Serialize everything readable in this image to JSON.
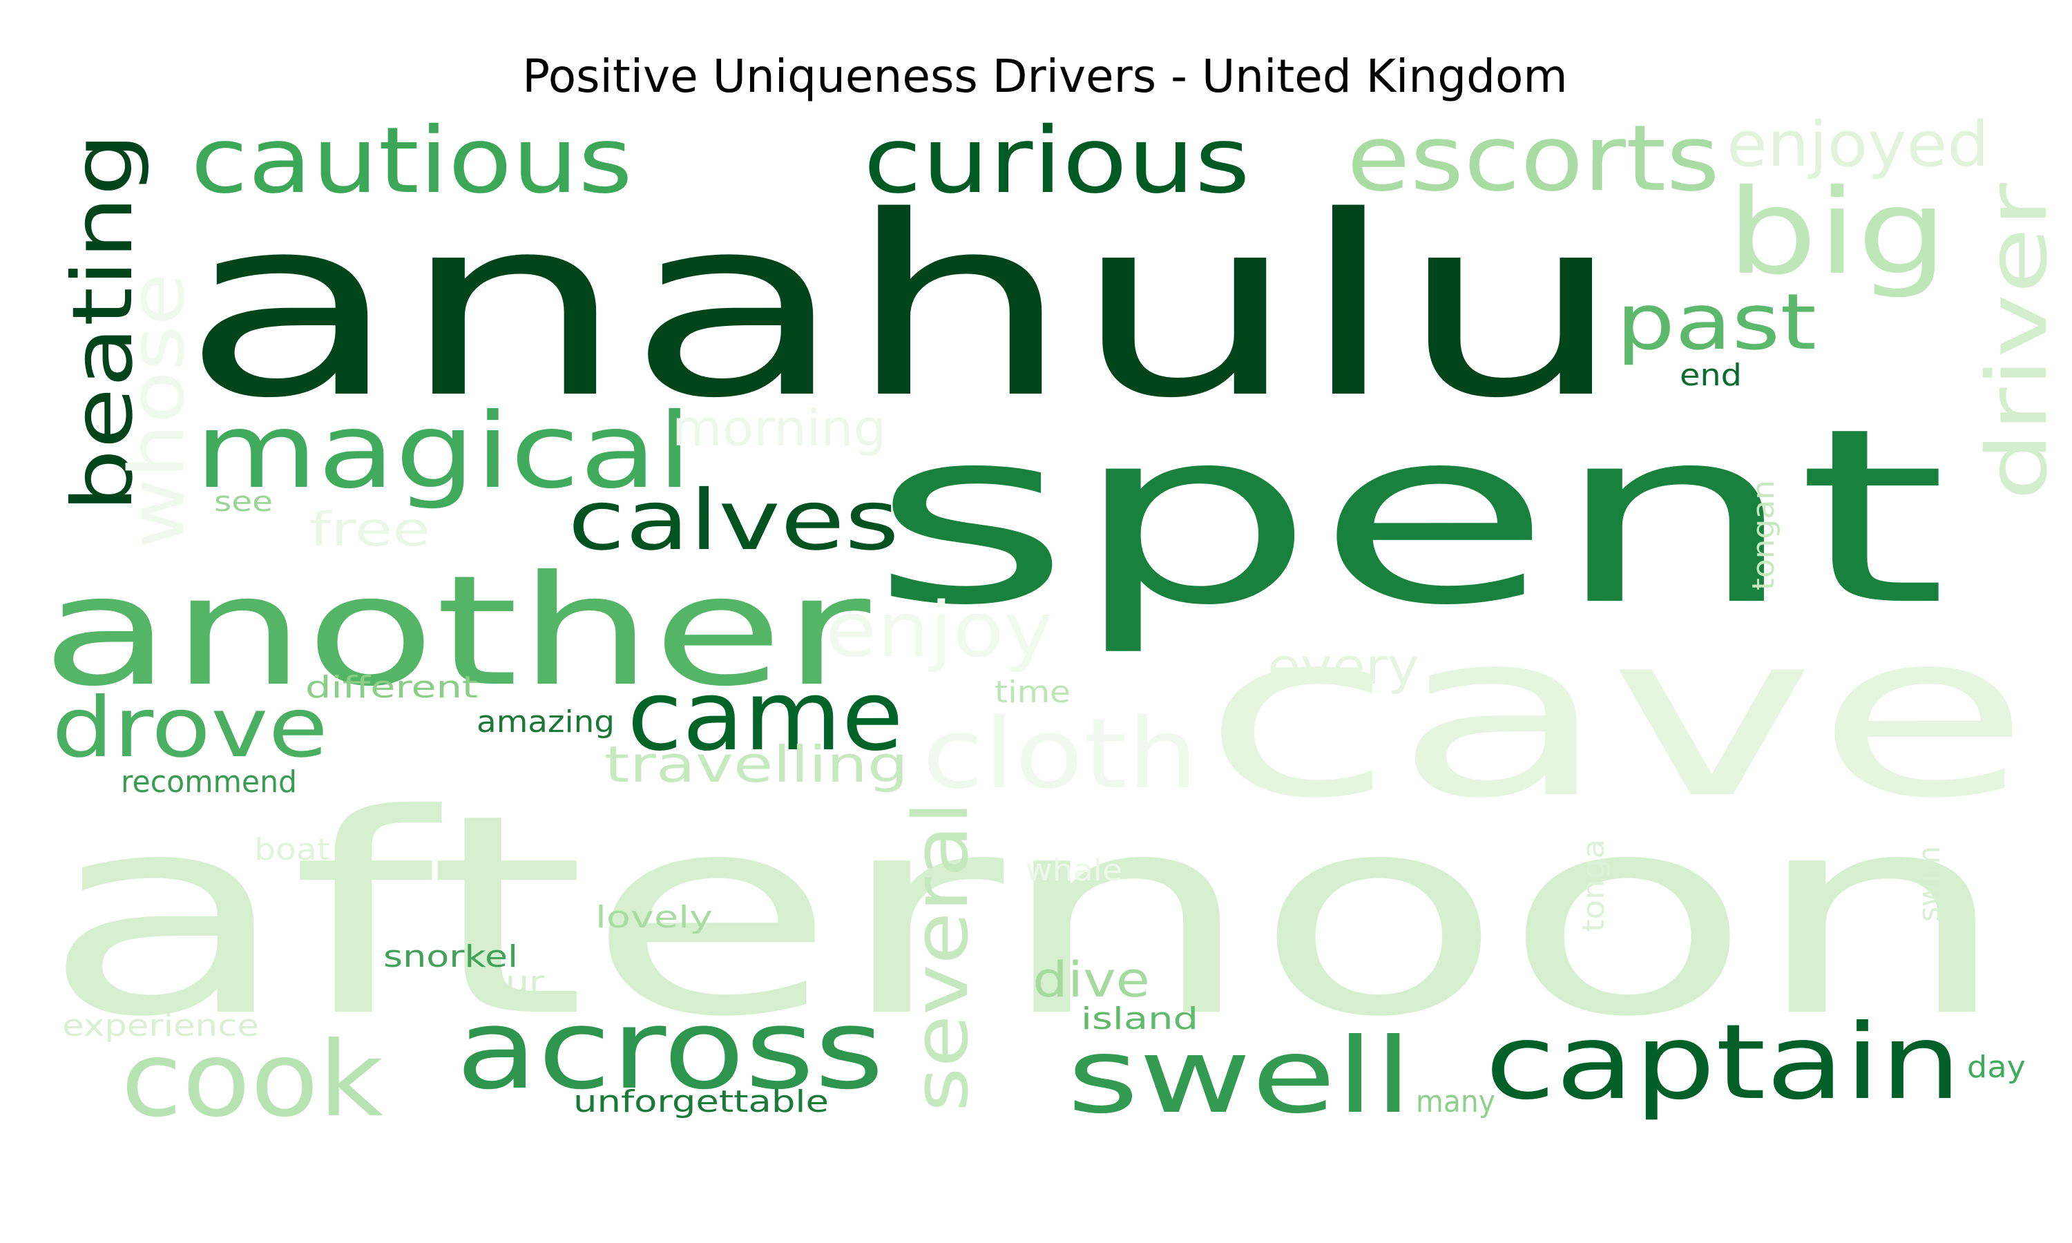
{
  "chart_data": {
    "type": "wordcloud",
    "title": "Positive Uniqueness Drivers - United Kingdom",
    "colormap": "Greens",
    "words": [
      {
        "text": "anahulu",
        "color": "#00441b"
      },
      {
        "text": "spent",
        "color": "#17813d"
      },
      {
        "text": "cave",
        "color": "#e5f5e0"
      },
      {
        "text": "afternoon",
        "color": "#d5efcf"
      },
      {
        "text": "another",
        "color": "#55b567"
      },
      {
        "text": "magical",
        "color": "#41ab5d"
      },
      {
        "text": "cautious",
        "color": "#3da758"
      },
      {
        "text": "curious",
        "color": "#005a24"
      },
      {
        "text": "escorts",
        "color": "#a8dca2"
      },
      {
        "text": "enjoyed",
        "color": "#e2f3dc"
      },
      {
        "text": "big",
        "color": "#bfe6b9"
      },
      {
        "text": "past",
        "color": "#5cb86b"
      },
      {
        "text": "driver",
        "color": "#d3eecd"
      },
      {
        "text": "beating",
        "color": "#00441b"
      },
      {
        "text": "whose",
        "color": "#f0f9ed"
      },
      {
        "text": "calves",
        "color": "#005221"
      },
      {
        "text": "morning",
        "color": "#eef8ea"
      },
      {
        "text": "came",
        "color": "#006428"
      },
      {
        "text": "drove",
        "color": "#4aaf61"
      },
      {
        "text": "enjoy",
        "color": "#f2faf0"
      },
      {
        "text": "cloth",
        "color": "#f0f9ed"
      },
      {
        "text": "several",
        "color": "#c5e8bf"
      },
      {
        "text": "across",
        "color": "#2d954d"
      },
      {
        "text": "swell",
        "color": "#329b51"
      },
      {
        "text": "captain",
        "color": "#006027"
      },
      {
        "text": "cook",
        "color": "#b7e2b1"
      },
      {
        "text": "dive",
        "color": "#a4da9e"
      },
      {
        "text": "travelling",
        "color": "#c7e9c0"
      },
      {
        "text": "every",
        "color": "#e5f5e0"
      },
      {
        "text": "free",
        "color": "#eaf7e6"
      },
      {
        "text": "see",
        "color": "#99d595"
      },
      {
        "text": "end",
        "color": "#0a6b31"
      },
      {
        "text": "tongan",
        "color": "#c7e9c0"
      },
      {
        "text": "different",
        "color": "#8ace88"
      },
      {
        "text": "amazing",
        "color": "#1b7837"
      },
      {
        "text": "time",
        "color": "#bde5b6"
      },
      {
        "text": "recommend",
        "color": "#3a9c52"
      },
      {
        "text": "boat",
        "color": "#e0f3db"
      },
      {
        "text": "whale",
        "color": "#eef8ea"
      },
      {
        "text": "lovely",
        "color": "#a9dca3"
      },
      {
        "text": "tonga",
        "color": "#dcf2d7"
      },
      {
        "text": "swim",
        "color": "#d9f0d3"
      },
      {
        "text": "snorkel",
        "color": "#43a25a"
      },
      {
        "text": "tour",
        "color": "#d5efcf"
      },
      {
        "text": "island",
        "color": "#60ba6c"
      },
      {
        "text": "experience",
        "color": "#d9f0d3"
      },
      {
        "text": "unforgettable",
        "color": "#1a7a3a"
      },
      {
        "text": "many",
        "color": "#8ed08b"
      },
      {
        "text": "day",
        "color": "#41ab5d"
      }
    ]
  }
}
